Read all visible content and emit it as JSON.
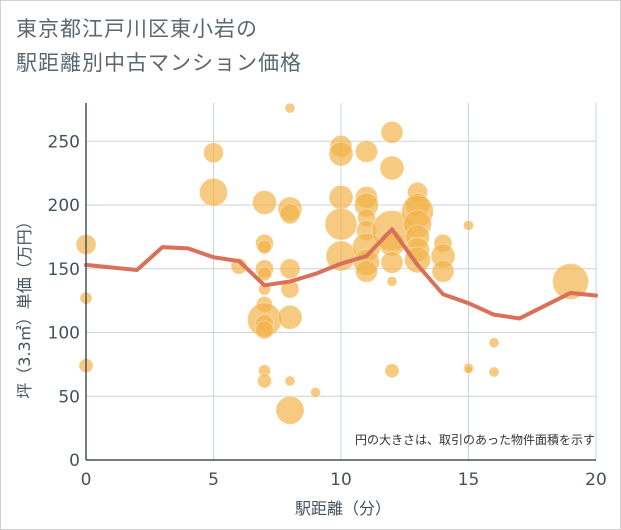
{
  "title": {
    "line1": "東京都江戸川区東小岩の",
    "line2": "駅距離別中古マンション価格"
  },
  "colors": {
    "bubble": "#f2b34a",
    "line": "#d9705a",
    "grid": "#c9d3dc",
    "text": "#44525b"
  },
  "chart_data": {
    "type": "scatter",
    "xlabel": "駅距離（分）",
    "ylabel": "坪（3.3㎡）単価（万円）",
    "xlim": [
      0,
      20
    ],
    "ylim": [
      0,
      280
    ],
    "xticks": [
      0,
      5,
      10,
      15,
      20
    ],
    "yticks": [
      0,
      50,
      100,
      150,
      200,
      250
    ],
    "grid": true,
    "note": "円の大きさは、取引のあった物件面積を示す",
    "points": [
      {
        "x": 0,
        "y": 169,
        "size": 10
      },
      {
        "x": 0,
        "y": 127,
        "size": 6
      },
      {
        "x": 0,
        "y": 74,
        "size": 7
      },
      {
        "x": 5,
        "y": 241,
        "size": 10
      },
      {
        "x": 5,
        "y": 210,
        "size": 14
      },
      {
        "x": 6,
        "y": 152,
        "size": 8
      },
      {
        "x": 7,
        "y": 202,
        "size": 12
      },
      {
        "x": 7,
        "y": 170,
        "size": 9
      },
      {
        "x": 7,
        "y": 167,
        "size": 7
      },
      {
        "x": 7,
        "y": 150,
        "size": 9
      },
      {
        "x": 7,
        "y": 146,
        "size": 7
      },
      {
        "x": 7,
        "y": 134,
        "size": 6
      },
      {
        "x": 7,
        "y": 122,
        "size": 8
      },
      {
        "x": 7,
        "y": 110,
        "size": 17
      },
      {
        "x": 7,
        "y": 107,
        "size": 9
      },
      {
        "x": 7,
        "y": 102,
        "size": 9
      },
      {
        "x": 7,
        "y": 70,
        "size": 6
      },
      {
        "x": 7,
        "y": 62,
        "size": 7
      },
      {
        "x": 8,
        "y": 276,
        "size": 5
      },
      {
        "x": 8,
        "y": 197,
        "size": 12
      },
      {
        "x": 8,
        "y": 193,
        "size": 10
      },
      {
        "x": 8,
        "y": 150,
        "size": 10
      },
      {
        "x": 8,
        "y": 134,
        "size": 9
      },
      {
        "x": 8,
        "y": 112,
        "size": 12
      },
      {
        "x": 8,
        "y": 62,
        "size": 5
      },
      {
        "x": 8,
        "y": 39,
        "size": 14
      },
      {
        "x": 9,
        "y": 53,
        "size": 5
      },
      {
        "x": 10,
        "y": 246,
        "size": 11
      },
      {
        "x": 10,
        "y": 240,
        "size": 12
      },
      {
        "x": 10,
        "y": 206,
        "size": 12
      },
      {
        "x": 10,
        "y": 185,
        "size": 16
      },
      {
        "x": 10,
        "y": 160,
        "size": 15
      },
      {
        "x": 11,
        "y": 242,
        "size": 11
      },
      {
        "x": 11,
        "y": 206,
        "size": 11
      },
      {
        "x": 11,
        "y": 200,
        "size": 12
      },
      {
        "x": 11,
        "y": 190,
        "size": 9
      },
      {
        "x": 11,
        "y": 180,
        "size": 10
      },
      {
        "x": 11,
        "y": 167,
        "size": 14
      },
      {
        "x": 11,
        "y": 155,
        "size": 13
      },
      {
        "x": 11,
        "y": 148,
        "size": 11
      },
      {
        "x": 12,
        "y": 257,
        "size": 11
      },
      {
        "x": 12,
        "y": 229,
        "size": 12
      },
      {
        "x": 12,
        "y": 180,
        "size": 20
      },
      {
        "x": 12,
        "y": 170,
        "size": 13
      },
      {
        "x": 12,
        "y": 155,
        "size": 11
      },
      {
        "x": 12,
        "y": 140,
        "size": 5
      },
      {
        "x": 12,
        "y": 70,
        "size": 7
      },
      {
        "x": 13,
        "y": 210,
        "size": 10
      },
      {
        "x": 13,
        "y": 200,
        "size": 12
      },
      {
        "x": 13,
        "y": 195,
        "size": 16
      },
      {
        "x": 13,
        "y": 185,
        "size": 14
      },
      {
        "x": 13,
        "y": 175,
        "size": 12
      },
      {
        "x": 13,
        "y": 165,
        "size": 12
      },
      {
        "x": 13,
        "y": 157,
        "size": 13
      },
      {
        "x": 14,
        "y": 170,
        "size": 9
      },
      {
        "x": 14,
        "y": 160,
        "size": 12
      },
      {
        "x": 14,
        "y": 148,
        "size": 11
      },
      {
        "x": 15,
        "y": 184,
        "size": 5
      },
      {
        "x": 15,
        "y": 72,
        "size": 5
      },
      {
        "x": 15,
        "y": 71,
        "size": 4
      },
      {
        "x": 16,
        "y": 92,
        "size": 5
      },
      {
        "x": 16,
        "y": 69,
        "size": 5
      },
      {
        "x": 19,
        "y": 140,
        "size": 18
      }
    ],
    "series": [
      {
        "x": [
          0,
          1,
          2,
          3,
          4,
          5,
          6,
          7,
          8,
          9,
          10,
          11,
          12,
          13,
          14,
          15,
          16,
          17,
          18,
          19,
          20
        ],
        "values": [
          153,
          151,
          149,
          167,
          166,
          159,
          156,
          137,
          140,
          146,
          154,
          160,
          181,
          153,
          130,
          123,
          114,
          111,
          121,
          131,
          129
        ]
      }
    ]
  }
}
